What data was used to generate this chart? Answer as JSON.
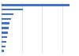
{
  "values": [
    67000,
    21000,
    12000,
    9500,
    8000,
    7000,
    6200,
    5500,
    4800,
    4000,
    2500
  ],
  "bar_color": "#4472c4",
  "background_color": "#ffffff",
  "grid_color": "#d9d9d9",
  "xlim": [
    0,
    75000
  ],
  "figsize": [
    1.0,
    0.71
  ],
  "dpi": 100,
  "bar_height": 0.45,
  "n_gridlines": 4
}
